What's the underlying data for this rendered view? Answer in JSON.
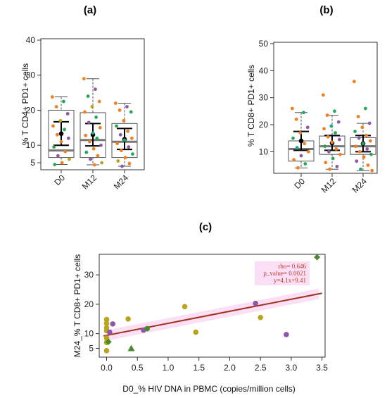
{
  "colors": {
    "box": "#555555",
    "median": "#777777",
    "mean_ci": "#000000",
    "fit_line": "#a0301e",
    "orange": "#f07f24",
    "green": "#2aa65a",
    "purple": "#8e57a8",
    "olive": "#b8a51c",
    "teal": "#23a58a",
    "pink": "#e5307a",
    "darkgreen": "#4a8a2e",
    "highlight": "#f7c6ec"
  },
  "chart_data": [
    {
      "panel": "(a)",
      "type": "box",
      "ylabel": "% T CD4+ PD1+ cells",
      "categories": [
        "D0",
        "M12",
        "M24"
      ],
      "yticks": [
        5,
        10,
        20,
        30,
        40
      ],
      "ylim": [
        3,
        40
      ],
      "boxes": [
        {
          "q1": 6.5,
          "median": 8.5,
          "q3": 20,
          "wlo": 4.5,
          "whi": 23.8,
          "mean": 13.3,
          "ci": [
            10,
            16.7
          ]
        },
        {
          "q1": 6.5,
          "median": 11.5,
          "q3": 19.3,
          "wlo": 4.4,
          "whi": 29,
          "mean": 13,
          "ci": [
            9.8,
            16.2
          ]
        },
        {
          "q1": 6.5,
          "median": 11,
          "q3": 16.2,
          "wlo": 4,
          "whi": 22,
          "mean": 11.7,
          "ci": [
            8.8,
            14.8
          ]
        }
      ],
      "points": [
        [
          [
            23.8,
            "orange"
          ],
          [
            22.5,
            "green"
          ],
          [
            21,
            "orange"
          ],
          [
            19,
            "purple"
          ],
          [
            17,
            "olive"
          ],
          [
            15.5,
            "orange"
          ],
          [
            14.5,
            "green"
          ],
          [
            13,
            "orange"
          ],
          [
            12,
            "purple"
          ],
          [
            11,
            "orange"
          ],
          [
            9.5,
            "green"
          ],
          [
            8.2,
            "orange"
          ],
          [
            7,
            "purple"
          ],
          [
            6,
            "olive"
          ],
          [
            5,
            "orange"
          ],
          [
            4.5,
            "green"
          ]
        ],
        [
          [
            29,
            "orange"
          ],
          [
            26,
            "purple"
          ],
          [
            24,
            "green"
          ],
          [
            22.5,
            "orange"
          ],
          [
            21,
            "olive"
          ],
          [
            19.5,
            "orange"
          ],
          [
            18,
            "green"
          ],
          [
            16.5,
            "purple"
          ],
          [
            15,
            "orange"
          ],
          [
            13.5,
            "teal"
          ],
          [
            12.8,
            "orange"
          ],
          [
            12,
            "green"
          ],
          [
            11,
            "orange"
          ],
          [
            10,
            "purple"
          ],
          [
            9,
            "orange"
          ],
          [
            8,
            "green"
          ],
          [
            7,
            "orange"
          ],
          [
            6,
            "purple"
          ],
          [
            5,
            "olive"
          ],
          [
            4.4,
            "orange"
          ]
        ],
        [
          [
            22,
            "orange"
          ],
          [
            21,
            "purple"
          ],
          [
            20,
            "orange"
          ],
          [
            19.5,
            "green"
          ],
          [
            17,
            "orange"
          ],
          [
            15.5,
            "green"
          ],
          [
            14,
            "orange"
          ],
          [
            13,
            "purple"
          ],
          [
            12,
            "orange"
          ],
          [
            11.5,
            "green"
          ],
          [
            10.5,
            "orange"
          ],
          [
            9.5,
            "purple"
          ],
          [
            8.5,
            "orange"
          ],
          [
            7.5,
            "green"
          ],
          [
            6.5,
            "orange"
          ],
          [
            5.5,
            "olive"
          ],
          [
            4.8,
            "orange"
          ],
          [
            4,
            "purple"
          ]
        ]
      ]
    },
    {
      "panel": "(b)",
      "type": "box",
      "ylabel": "% T CD8+ PD1+ cells",
      "categories": [
        "D0",
        "M12",
        "M24"
      ],
      "yticks": [
        10,
        20,
        30,
        40,
        50
      ],
      "ylim": [
        2,
        50
      ],
      "boxes": [
        {
          "q1": 6.5,
          "median": 11,
          "q3": 14,
          "wlo": 4,
          "whi": 24.5,
          "mean": 14,
          "ci": [
            10.5,
            17.5
          ]
        },
        {
          "q1": 9,
          "median": 12,
          "q3": 15.8,
          "wlo": 3.5,
          "whi": 23.5,
          "mean": 13.2,
          "ci": [
            10.5,
            16
          ]
        },
        {
          "q1": 9,
          "median": 12,
          "q3": 15.2,
          "wlo": 3,
          "whi": 20.5,
          "mean": 13,
          "ci": [
            10,
            16
          ]
        }
      ],
      "points": [
        [
          [
            26,
            "orange"
          ],
          [
            24.5,
            "green"
          ],
          [
            22,
            "orange"
          ],
          [
            19,
            "purple"
          ],
          [
            17,
            "orange"
          ],
          [
            15,
            "green"
          ],
          [
            13,
            "orange"
          ],
          [
            11.5,
            "teal"
          ],
          [
            10,
            "orange"
          ],
          [
            8.5,
            "purple"
          ],
          [
            7,
            "orange"
          ],
          [
            5.5,
            "green"
          ],
          [
            4,
            "orange"
          ]
        ],
        [
          [
            31,
            "orange"
          ],
          [
            25,
            "green"
          ],
          [
            23.5,
            "orange"
          ],
          [
            21,
            "purple"
          ],
          [
            19.5,
            "teal"
          ],
          [
            18.5,
            "orange"
          ],
          [
            17,
            "green"
          ],
          [
            15.5,
            "orange"
          ],
          [
            14.5,
            "purple"
          ],
          [
            13.5,
            "orange"
          ],
          [
            12,
            "green"
          ],
          [
            11,
            "orange"
          ],
          [
            10,
            "purple"
          ],
          [
            9,
            "orange"
          ],
          [
            7.5,
            "green"
          ],
          [
            6,
            "orange"
          ],
          [
            4.5,
            "purple"
          ],
          [
            3.5,
            "orange"
          ]
        ],
        [
          [
            36,
            "orange"
          ],
          [
            26,
            "green"
          ],
          [
            23,
            "orange"
          ],
          [
            20.5,
            "purple"
          ],
          [
            19,
            "orange"
          ],
          [
            17.5,
            "green"
          ],
          [
            16,
            "orange"
          ],
          [
            15,
            "purple"
          ],
          [
            14,
            "orange"
          ],
          [
            13,
            "green"
          ],
          [
            12,
            "orange"
          ],
          [
            11,
            "purple"
          ],
          [
            10,
            "orange"
          ],
          [
            9,
            "green"
          ],
          [
            8,
            "orange"
          ],
          [
            6.5,
            "purple"
          ],
          [
            5,
            "orange"
          ],
          [
            3.5,
            "green"
          ],
          [
            3,
            "orange"
          ]
        ]
      ]
    },
    {
      "panel": "(c)",
      "type": "scatter",
      "xlabel": "D0_% HIV DNA in PBMC (copies/million cells)",
      "ylabel": "M24_% T CD8+ PD1+ cells",
      "xticks": [
        0.0,
        0.5,
        1.0,
        1.5,
        2.0,
        2.5,
        3.0,
        3.5
      ],
      "yticks": [
        5,
        10,
        20,
        30
      ],
      "xlim": [
        -0.12,
        3.55
      ],
      "ylim": [
        2,
        37
      ],
      "annotation": [
        "rho= 0.646",
        "p_value= 0.0021",
        "y=4.1x+9.41"
      ],
      "fit": {
        "slope": 4.1,
        "intercept": 9.41
      },
      "points": [
        {
          "x": 0.0,
          "y": 4.2,
          "c": "olive",
          "s": "circle"
        },
        {
          "x": 0.0,
          "y": 7,
          "c": "olive",
          "s": "circle"
        },
        {
          "x": 0.0,
          "y": 8.5,
          "c": "olive",
          "s": "circle"
        },
        {
          "x": 0.0,
          "y": 11,
          "c": "olive",
          "s": "circle"
        },
        {
          "x": 0.0,
          "y": 12,
          "c": "olive",
          "s": "circle"
        },
        {
          "x": 0.0,
          "y": 13.5,
          "c": "olive",
          "s": "circle"
        },
        {
          "x": 0.0,
          "y": 14.8,
          "c": "olive",
          "s": "circle"
        },
        {
          "x": 0.03,
          "y": 7.2,
          "c": "darkgreen",
          "s": "diamond"
        },
        {
          "x": 0.05,
          "y": 10.5,
          "c": "purple",
          "s": "circle"
        },
        {
          "x": 0.1,
          "y": 13.3,
          "c": "purple",
          "s": "circle"
        },
        {
          "x": 0.35,
          "y": 15,
          "c": "olive",
          "s": "circle"
        },
        {
          "x": 0.4,
          "y": 5,
          "c": "darkgreen",
          "s": "triangle"
        },
        {
          "x": 0.6,
          "y": 11.2,
          "c": "purple",
          "s": "circle"
        },
        {
          "x": 0.66,
          "y": 11.7,
          "c": "darkgreen",
          "s": "circle"
        },
        {
          "x": 1.27,
          "y": 19.2,
          "c": "olive",
          "s": "circle"
        },
        {
          "x": 1.45,
          "y": 10.5,
          "c": "olive",
          "s": "circle"
        },
        {
          "x": 2.42,
          "y": 20.3,
          "c": "purple",
          "s": "circle"
        },
        {
          "x": 2.5,
          "y": 15.5,
          "c": "olive",
          "s": "circle"
        },
        {
          "x": 2.92,
          "y": 9.7,
          "c": "purple",
          "s": "circle"
        },
        {
          "x": 3.42,
          "y": 36,
          "c": "darkgreen",
          "s": "diamond"
        }
      ]
    }
  ]
}
